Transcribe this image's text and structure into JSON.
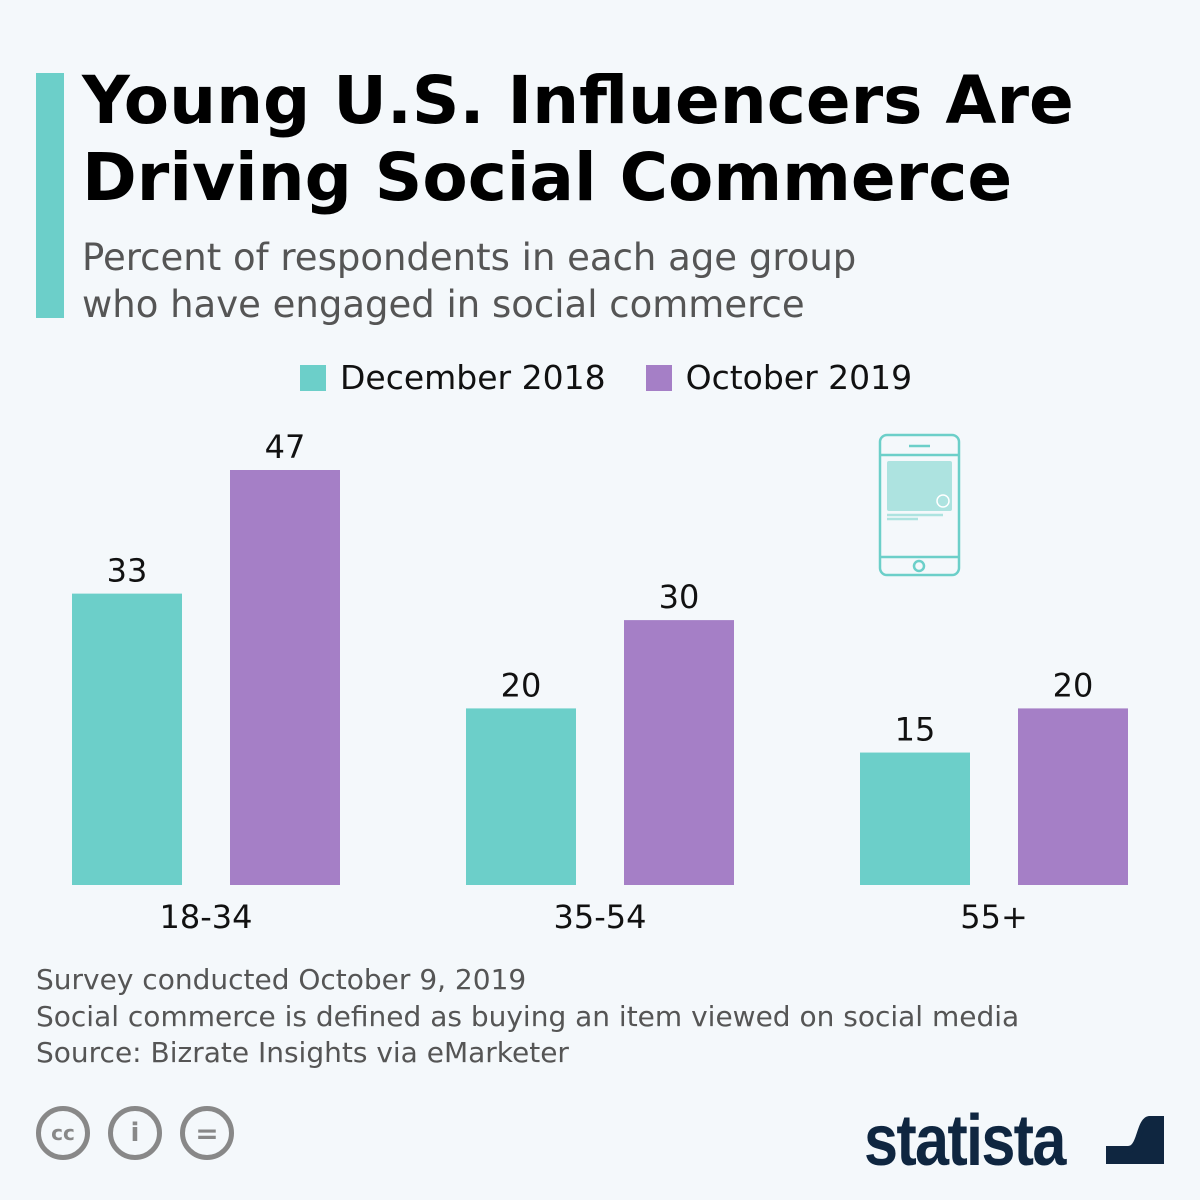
{
  "header": {
    "title_line1": "Young U.S. Influencers Are",
    "title_line2": "Driving Social Commerce",
    "subtitle_line1": "Percent of respondents in each age group",
    "subtitle_line2": "who have engaged in social commerce"
  },
  "colors": {
    "accent": "#6ccfc9",
    "series1": "#6ccfc9",
    "series2": "#a57fc6",
    "text": "#000000",
    "logo": "#0f2640"
  },
  "chart_data": {
    "type": "bar",
    "categories": [
      "18-34",
      "35-54",
      "55+"
    ],
    "series": [
      {
        "name": "December 2018",
        "values": [
          33,
          20,
          15
        ]
      },
      {
        "name": "October 2019",
        "values": [
          47,
          30,
          20
        ]
      }
    ],
    "ylim": [
      0,
      47
    ],
    "grid": false,
    "legend_position": "top-center",
    "data_labels": true
  },
  "decoration": {
    "icon": "smartphone-with-dollar-icon"
  },
  "footer": {
    "note1": "Survey conducted October 9, 2019",
    "note2": "Social commerce is defined as buying an item viewed on social media",
    "source": "Source: Bizrate Insights via eMarketer",
    "logo_text": "statista",
    "license_icons": [
      "cc-icon",
      "attribution-icon",
      "no-derivatives-icon"
    ]
  }
}
